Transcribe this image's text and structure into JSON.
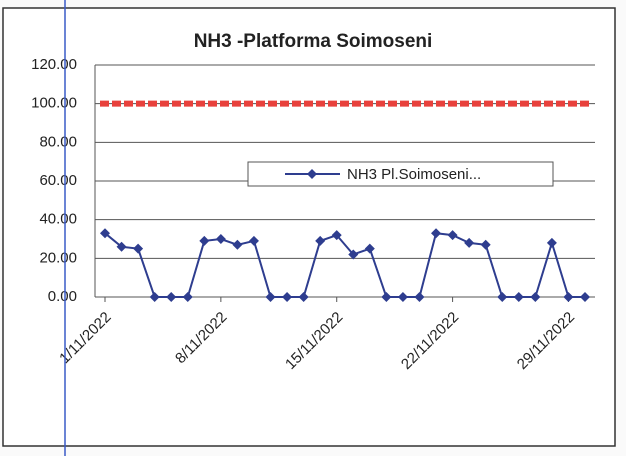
{
  "chart_data": {
    "type": "line",
    "title": "NH3 -Platforma Soimoseni",
    "categories": [
      "1/11/2022",
      null,
      null,
      null,
      null,
      null,
      null,
      "8/11/2022",
      null,
      null,
      null,
      null,
      null,
      null,
      "15/11/2022",
      null,
      null,
      null,
      null,
      null,
      null,
      "22/11/2022",
      null,
      null,
      null,
      null,
      null,
      null,
      "29/11/2022",
      null
    ],
    "series": [
      {
        "name": "NH3 Pl.Soimoseni...",
        "color": "#2e3d8f",
        "values": [
          33,
          26,
          25,
          0,
          0,
          0,
          29,
          30,
          27,
          29,
          0,
          0,
          0,
          29,
          32,
          22,
          25,
          0,
          0,
          0,
          33,
          32,
          28,
          27,
          0,
          0,
          0,
          28,
          0,
          0
        ]
      }
    ],
    "reference_line": {
      "value": 100,
      "color": "#e8413c"
    },
    "ylim": [
      0,
      120
    ],
    "yticks": [
      {
        "value": 0,
        "label": "0.00"
      },
      {
        "value": 20,
        "label": "20.00"
      },
      {
        "value": 40,
        "label": "40.00"
      },
      {
        "value": 60,
        "label": "60.00"
      },
      {
        "value": 80,
        "label": "80.00"
      },
      {
        "value": 100,
        "label": "100.00"
      },
      {
        "value": 120,
        "label": "120.00"
      }
    ],
    "grid": true
  }
}
